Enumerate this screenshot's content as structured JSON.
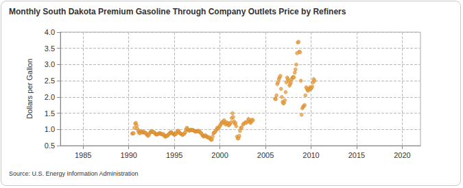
{
  "chart_data": {
    "type": "scatter",
    "title": "Monthly South Dakota Premium Gasoline Through Company Outlets Price by Refiners",
    "y_label": "Dollars per Gallon",
    "source": "Source: U.S. Energy Information Administration",
    "color": "#eba040",
    "marker": "circle",
    "grid": true,
    "xlim": [
      1982.5,
      2022
    ],
    "xticks": [
      1985,
      1990,
      1995,
      2000,
      2005,
      2010,
      2015,
      2020
    ],
    "ylim": [
      0.5,
      4.0
    ],
    "yticks": [
      {
        "value": 0.5,
        "label": "0.5"
      },
      {
        "value": 1.0,
        "label": "1.0"
      },
      {
        "value": 1.5,
        "label": "1.5"
      },
      {
        "value": 2.0,
        "label": "2.0"
      },
      {
        "value": 2.5,
        "label": "2.5"
      },
      {
        "value": 3.0,
        "label": "3.0"
      },
      {
        "value": 3.5,
        "label": "3.5"
      },
      {
        "value": 4.0,
        "label": "4.0"
      }
    ],
    "x": [
      1990.38,
      1990.46,
      1990.54,
      1990.63,
      1990.71,
      1990.79,
      1990.88,
      1990.96,
      1991.04,
      1991.13,
      1991.21,
      1991.29,
      1991.38,
      1991.46,
      1991.54,
      1991.63,
      1991.71,
      1991.79,
      1991.88,
      1991.96,
      1992.04,
      1992.13,
      1992.21,
      1992.29,
      1992.38,
      1992.46,
      1992.54,
      1992.63,
      1992.71,
      1992.79,
      1992.88,
      1992.96,
      1993.04,
      1993.13,
      1993.21,
      1993.29,
      1993.38,
      1993.46,
      1993.54,
      1993.63,
      1993.71,
      1993.79,
      1993.88,
      1993.96,
      1994.04,
      1994.13,
      1994.21,
      1994.29,
      1994.38,
      1994.46,
      1994.54,
      1994.63,
      1994.71,
      1994.79,
      1994.88,
      1994.96,
      1995.04,
      1995.13,
      1995.21,
      1995.29,
      1995.38,
      1995.46,
      1995.54,
      1995.63,
      1995.71,
      1995.79,
      1995.88,
      1995.96,
      1996.04,
      1996.13,
      1996.21,
      1996.29,
      1996.38,
      1996.46,
      1996.54,
      1996.63,
      1996.71,
      1996.79,
      1996.88,
      1996.96,
      1997.04,
      1997.13,
      1997.21,
      1997.29,
      1997.38,
      1997.46,
      1997.54,
      1997.63,
      1997.71,
      1997.79,
      1997.88,
      1997.96,
      1998.04,
      1998.13,
      1998.21,
      1998.29,
      1998.38,
      1998.46,
      1998.54,
      1998.63,
      1998.71,
      1998.79,
      1998.88,
      1998.96,
      1999.04,
      1999.13,
      1999.21,
      1999.29,
      1999.38,
      1999.46,
      1999.54,
      1999.63,
      1999.71,
      1999.79,
      1999.88,
      1999.96,
      2000.04,
      2000.13,
      2000.21,
      2000.29,
      2000.38,
      2000.46,
      2000.54,
      2000.63,
      2000.71,
      2000.79,
      2000.88,
      2000.96,
      2001.04,
      2001.13,
      2001.21,
      2001.29,
      2001.38,
      2001.46,
      2001.54,
      2001.63,
      2001.71,
      2001.79,
      2001.88,
      2001.96,
      2002.04,
      2002.13,
      2002.21,
      2002.29,
      2002.38,
      2002.54,
      2002.63,
      2002.79,
      2002.88,
      2003.04,
      2003.13,
      2003.21,
      2003.29,
      2003.38,
      2003.46,
      2003.54,
      2003.63,
      2006.04,
      2006.13,
      2006.21,
      2006.29,
      2006.38,
      2006.46,
      2006.54,
      2006.63,
      2006.71,
      2006.79,
      2006.88,
      2006.96,
      2007.04,
      2007.13,
      2007.21,
      2007.29,
      2007.38,
      2007.46,
      2007.54,
      2007.63,
      2007.71,
      2007.79,
      2007.88,
      2007.96,
      2008.04,
      2008.13,
      2008.21,
      2008.29,
      2008.38,
      2008.46,
      2008.54,
      2008.63,
      2008.71,
      2008.79,
      2008.88,
      2008.96,
      2009.04,
      2009.13,
      2009.21,
      2009.29,
      2009.38,
      2009.46,
      2009.54,
      2009.63,
      2009.71,
      2009.79,
      2009.88,
      2009.96,
      2010.04,
      2010.13,
      2010.21,
      2010.29,
      2010.38
    ],
    "values": [
      0.87,
      0.88,
      0.88,
      1.05,
      1.18,
      1.2,
      1.12,
      1.02,
      0.95,
      0.9,
      0.88,
      0.93,
      0.95,
      0.92,
      0.9,
      0.92,
      0.91,
      0.9,
      0.89,
      0.85,
      0.82,
      0.8,
      0.84,
      0.88,
      0.92,
      0.95,
      0.93,
      0.92,
      0.92,
      0.91,
      0.88,
      0.85,
      0.84,
      0.85,
      0.86,
      0.87,
      0.89,
      0.88,
      0.86,
      0.85,
      0.84,
      0.86,
      0.82,
      0.78,
      0.78,
      0.8,
      0.8,
      0.82,
      0.85,
      0.87,
      0.9,
      0.92,
      0.9,
      0.88,
      0.86,
      0.84,
      0.84,
      0.85,
      0.87,
      0.92,
      0.96,
      0.95,
      0.9,
      0.88,
      0.87,
      0.85,
      0.83,
      0.84,
      0.86,
      0.88,
      0.92,
      1.0,
      1.05,
      1.02,
      0.98,
      0.96,
      0.97,
      0.98,
      0.99,
      0.98,
      0.98,
      0.97,
      0.95,
      0.93,
      0.94,
      0.95,
      0.93,
      0.96,
      0.95,
      0.92,
      0.9,
      0.88,
      0.84,
      0.8,
      0.78,
      0.8,
      0.82,
      0.8,
      0.78,
      0.76,
      0.75,
      0.76,
      0.74,
      0.7,
      0.68,
      0.69,
      0.78,
      0.88,
      0.9,
      0.92,
      0.95,
      1.0,
      1.05,
      1.02,
      1.04,
      1.1,
      1.12,
      1.18,
      1.22,
      1.2,
      1.25,
      1.28,
      1.2,
      1.15,
      1.22,
      1.18,
      1.2,
      1.12,
      1.15,
      1.18,
      1.22,
      1.35,
      1.5,
      1.38,
      1.25,
      1.18,
      1.2,
      1.1,
      0.78,
      0.72,
      0.73,
      0.8,
      0.95,
      1.05,
      1.05,
      1.15,
      1.18,
      1.22,
      1.2,
      1.25,
      1.32,
      1.3,
      1.22,
      1.2,
      1.25,
      1.3,
      1.28,
      1.95,
      1.93,
      2.05,
      2.4,
      2.45,
      2.55,
      2.6,
      2.65,
      2.25,
      2.0,
      1.85,
      1.8,
      1.82,
      1.9,
      2.15,
      2.45,
      2.6,
      2.55,
      2.5,
      2.35,
      2.4,
      2.45,
      2.55,
      2.6,
      2.62,
      2.6,
      2.75,
      2.85,
      3.0,
      3.35,
      3.68,
      3.7,
      3.4,
      3.38,
      2.5,
      1.45,
      1.65,
      1.7,
      1.72,
      1.75,
      2.05,
      2.3,
      2.25,
      2.2,
      2.2,
      2.25,
      2.3,
      2.25,
      2.28,
      2.32,
      2.45,
      2.55,
      2.5
    ]
  }
}
